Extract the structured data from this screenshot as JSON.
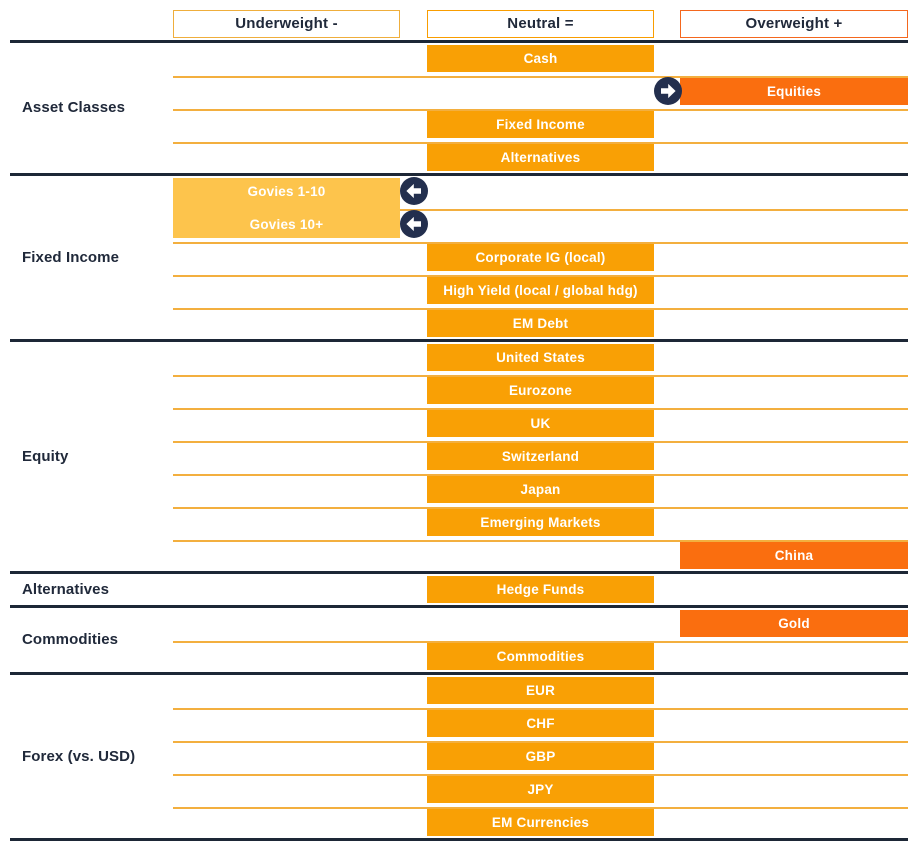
{
  "colors": {
    "underweight_bar": "#FDC44C",
    "neutral_bar": "#F9A005",
    "overweight_bar": "#FA6E0F",
    "row_line": "#F3AF3F",
    "section_divider": "#1D2736",
    "label_text": "#20293A",
    "bar_text": "#FFFFFF",
    "arrow_circle": "#232F4E",
    "underweight_border": "#EFAE3C",
    "neutral_border": "#F99D00",
    "overweight_border": "#F4671E"
  },
  "chart_data": {
    "type": "table",
    "title": "",
    "columns": [
      "Underweight -",
      "Neutral =",
      "Overweight +"
    ],
    "legend_position": "top",
    "groups": [
      {
        "name": "Asset Classes",
        "items": [
          {
            "name": "Cash",
            "position": "neutral"
          },
          {
            "name": "Equities",
            "position": "overweight",
            "arrow": "right"
          },
          {
            "name": "Fixed Income",
            "position": "neutral"
          },
          {
            "name": "Alternatives",
            "position": "neutral"
          }
        ]
      },
      {
        "name": "Fixed Income",
        "items": [
          {
            "name": "Govies 1-10",
            "position": "underweight",
            "arrow": "left",
            "merge_down": true
          },
          {
            "name": "Govies 10+",
            "position": "underweight",
            "arrow": "left"
          },
          {
            "name": "Corporate IG (local)",
            "position": "neutral"
          },
          {
            "name": "High Yield (local / global hdg)",
            "position": "neutral"
          },
          {
            "name": "EM Debt",
            "position": "neutral"
          }
        ]
      },
      {
        "name": "Equity",
        "items": [
          {
            "name": "United States",
            "position": "neutral"
          },
          {
            "name": "Eurozone",
            "position": "neutral"
          },
          {
            "name": "UK",
            "position": "neutral"
          },
          {
            "name": "Switzerland",
            "position": "neutral"
          },
          {
            "name": "Japan",
            "position": "neutral"
          },
          {
            "name": "Emerging Markets",
            "position": "neutral"
          },
          {
            "name": "China",
            "position": "overweight"
          }
        ]
      },
      {
        "name": "Alternatives",
        "items": [
          {
            "name": "Hedge Funds",
            "position": "neutral"
          }
        ]
      },
      {
        "name": "Commodities",
        "items": [
          {
            "name": "Gold",
            "position": "overweight"
          },
          {
            "name": "Commodities",
            "position": "neutral"
          }
        ]
      },
      {
        "name": "Forex (vs. USD)",
        "items": [
          {
            "name": "EUR",
            "position": "neutral"
          },
          {
            "name": "CHF",
            "position": "neutral"
          },
          {
            "name": "GBP",
            "position": "neutral"
          },
          {
            "name": "JPY",
            "position": "neutral"
          },
          {
            "name": "EM Currencies",
            "position": "neutral"
          }
        ]
      }
    ]
  }
}
